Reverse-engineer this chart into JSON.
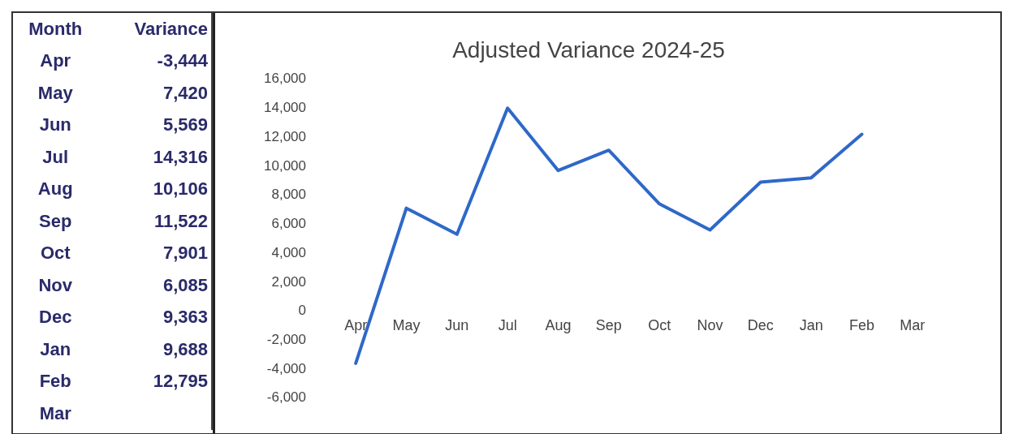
{
  "chart_data": {
    "type": "line",
    "title": "Adjusted Variance 2024-25",
    "categories": [
      "Apr",
      "May",
      "Jun",
      "Jul",
      "Aug",
      "Sep",
      "Oct",
      "Nov",
      "Dec",
      "Jan",
      "Feb",
      "Mar"
    ],
    "series": [
      {
        "color": "#2f68c8",
        "values": [
          -3600,
          7100,
          5300,
          14000,
          9700,
          11100,
          7400,
          5600,
          8900,
          9200,
          12200,
          null
        ]
      }
    ],
    "ylim": [
      -6000,
      16000
    ],
    "yticks": [
      {
        "value": -6000,
        "label": "-6,000"
      },
      {
        "value": -4000,
        "label": "-4,000"
      },
      {
        "value": -2000,
        "label": "-2,000"
      },
      0,
      {
        "value": 2000,
        "label": "2,000"
      },
      {
        "value": 4000,
        "label": "4,000"
      },
      {
        "value": 6000,
        "label": "6,000"
      },
      {
        "value": 8000,
        "label": "8,000"
      },
      {
        "value": 10000,
        "label": "10,000"
      },
      {
        "value": 12000,
        "label": "12,000"
      },
      {
        "value": 14000,
        "label": "14,000"
      },
      {
        "value": 16000,
        "label": "16,000"
      }
    ],
    "annotations": [
      "Month",
      "Variance",
      "Apr",
      "-3,444",
      "May",
      "7,420",
      "Jun",
      "5,569",
      "Jul",
      "14,316",
      "Aug",
      "10,106",
      "Sep",
      "11,522",
      "Oct",
      "7,901",
      "Nov",
      "6,085",
      "Dec",
      "9,363",
      "Jan",
      "9,688",
      "Feb",
      "12,795",
      "Mar"
    ],
    "grid": false,
    "legend": false,
    "marker": "none",
    "line_style": "solid"
  }
}
